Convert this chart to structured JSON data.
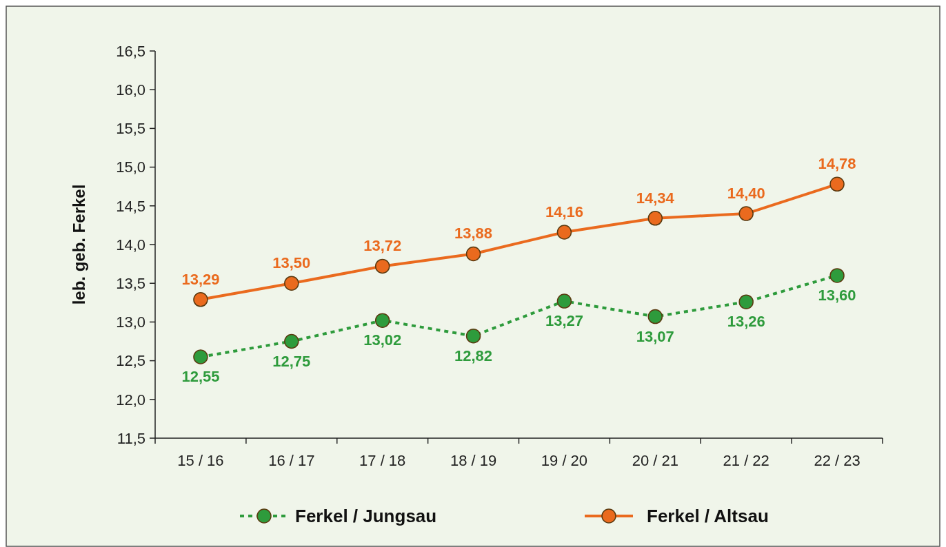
{
  "chart_data": {
    "type": "line",
    "ylabel": "leb. geb. Ferkel",
    "categories": [
      "15 / 16",
      "16 / 17",
      "17 / 18",
      "18 / 19",
      "19 / 20",
      "20 / 21",
      "21 / 22",
      "22 / 23"
    ],
    "series": [
      {
        "name": "Ferkel / Jungsau",
        "color": "#2e9b3c",
        "line_style": "dotted",
        "values": [
          12.55,
          12.75,
          13.02,
          12.82,
          13.27,
          13.07,
          13.26,
          13.6
        ],
        "value_labels": [
          "12,55",
          "12,75",
          "13,02",
          "12,82",
          "13,27",
          "13,07",
          "13,26",
          "13,60"
        ]
      },
      {
        "name": "Ferkel / Altsau",
        "color": "#ea6a1e",
        "line_style": "solid",
        "values": [
          13.29,
          13.5,
          13.72,
          13.88,
          14.16,
          14.34,
          14.4,
          14.78
        ],
        "value_labels": [
          "13,29",
          "13,50",
          "13,72",
          "13,88",
          "14,16",
          "14,34",
          "14,40",
          "14,78"
        ]
      }
    ],
    "ylim": [
      11.5,
      16.5
    ],
    "yticks": [
      {
        "value": 11.5,
        "label": "11,5"
      },
      {
        "value": 12,
        "label": "12,0"
      },
      {
        "value": 12.5,
        "label": "12,5"
      },
      {
        "value": 13,
        "label": "13,0"
      },
      {
        "value": 13.5,
        "label": "13,5"
      },
      {
        "value": 14,
        "label": "14,0"
      },
      {
        "value": 14.5,
        "label": "14,5"
      },
      {
        "value": 15,
        "label": "15,0"
      },
      {
        "value": 15.5,
        "label": "15,5"
      },
      {
        "value": 16,
        "label": "16,0"
      },
      {
        "value": 16.5,
        "label": "16,5"
      }
    ],
    "marker": "circle",
    "legend": "bottom",
    "grid": false
  }
}
